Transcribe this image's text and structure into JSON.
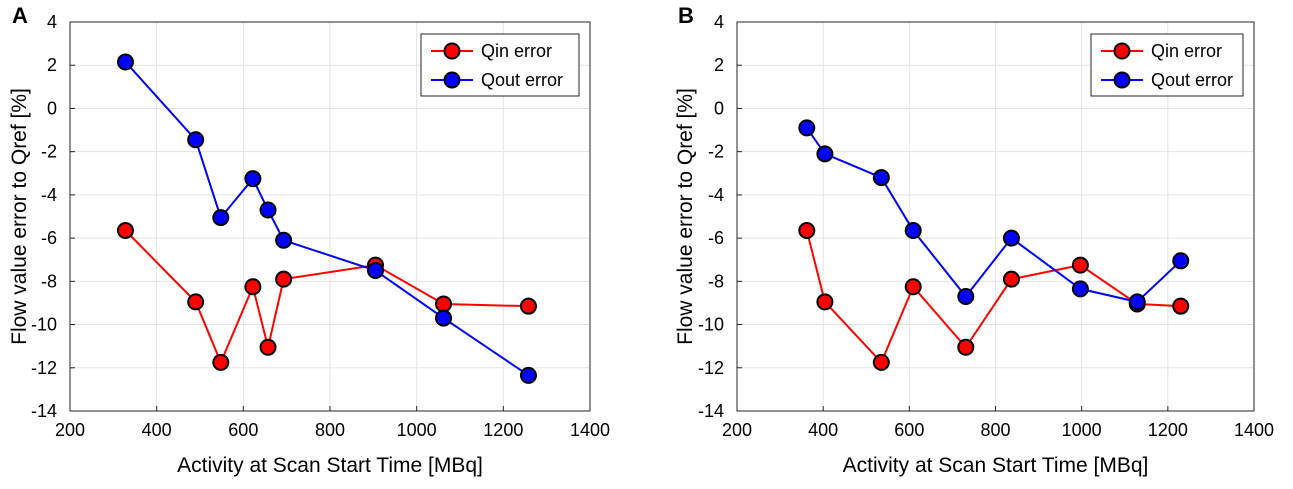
{
  "chart_data": [
    {
      "type": "line",
      "panel_label": "A",
      "xlabel": "Activity at Scan Start Time [MBq]",
      "ylabel": "Flow value error to Qref [%]",
      "xlim": [
        200,
        1400
      ],
      "ylim": [
        -14,
        4
      ],
      "xticks": [
        200,
        400,
        600,
        800,
        1000,
        1200,
        1400
      ],
      "yticks": [
        -14,
        -12,
        -10,
        -8,
        -6,
        -4,
        -2,
        0,
        2,
        4
      ],
      "grid": true,
      "legend_position": "top-right",
      "series": [
        {
          "name": "Qin error",
          "color": "#ff0000",
          "points": [
            {
              "x": 328,
              "y": -5.65
            },
            {
              "x": 490,
              "y": -8.95
            },
            {
              "x": 548,
              "y": -11.75
            },
            {
              "x": 622,
              "y": -8.25
            },
            {
              "x": 657,
              "y": -11.05
            },
            {
              "x": 693,
              "y": -7.9
            },
            {
              "x": 905,
              "y": -7.25
            },
            {
              "x": 1062,
              "y": -9.05
            },
            {
              "x": 1258,
              "y": -9.15
            }
          ]
        },
        {
          "name": "Qout error",
          "color": "#0000ff",
          "points": [
            {
              "x": 328,
              "y": 2.15
            },
            {
              "x": 490,
              "y": -1.45
            },
            {
              "x": 548,
              "y": -5.05
            },
            {
              "x": 622,
              "y": -3.25
            },
            {
              "x": 657,
              "y": -4.7
            },
            {
              "x": 693,
              "y": -6.1
            },
            {
              "x": 905,
              "y": -7.5
            },
            {
              "x": 1062,
              "y": -9.7
            },
            {
              "x": 1258,
              "y": -12.35
            }
          ]
        }
      ]
    },
    {
      "type": "line",
      "panel_label": "B",
      "xlabel": "Activity at Scan Start Time [MBq]",
      "ylabel": "Flow value error to Qref [%]",
      "xlim": [
        200,
        1400
      ],
      "ylim": [
        -14,
        4
      ],
      "xticks": [
        200,
        400,
        600,
        800,
        1000,
        1200,
        1400
      ],
      "yticks": [
        -14,
        -12,
        -10,
        -8,
        -6,
        -4,
        -2,
        0,
        2,
        4
      ],
      "grid": true,
      "legend_position": "top-right",
      "series": [
        {
          "name": "Qin error",
          "color": "#ff0000",
          "points": [
            {
              "x": 362,
              "y": -5.65
            },
            {
              "x": 404,
              "y": -8.95
            },
            {
              "x": 535,
              "y": -11.75
            },
            {
              "x": 609,
              "y": -8.25
            },
            {
              "x": 731,
              "y": -11.05
            },
            {
              "x": 837,
              "y": -7.9
            },
            {
              "x": 997,
              "y": -7.25
            },
            {
              "x": 1129,
              "y": -9.05
            },
            {
              "x": 1230,
              "y": -9.15
            }
          ]
        },
        {
          "name": "Qout error",
          "color": "#0000ff",
          "points": [
            {
              "x": 362,
              "y": -0.9
            },
            {
              "x": 404,
              "y": -2.1
            },
            {
              "x": 535,
              "y": -3.2
            },
            {
              "x": 609,
              "y": -5.65
            },
            {
              "x": 731,
              "y": -8.7
            },
            {
              "x": 837,
              "y": -6.0
            },
            {
              "x": 997,
              "y": -8.35
            },
            {
              "x": 1129,
              "y": -8.95
            },
            {
              "x": 1230,
              "y": -7.05
            }
          ]
        }
      ]
    }
  ]
}
